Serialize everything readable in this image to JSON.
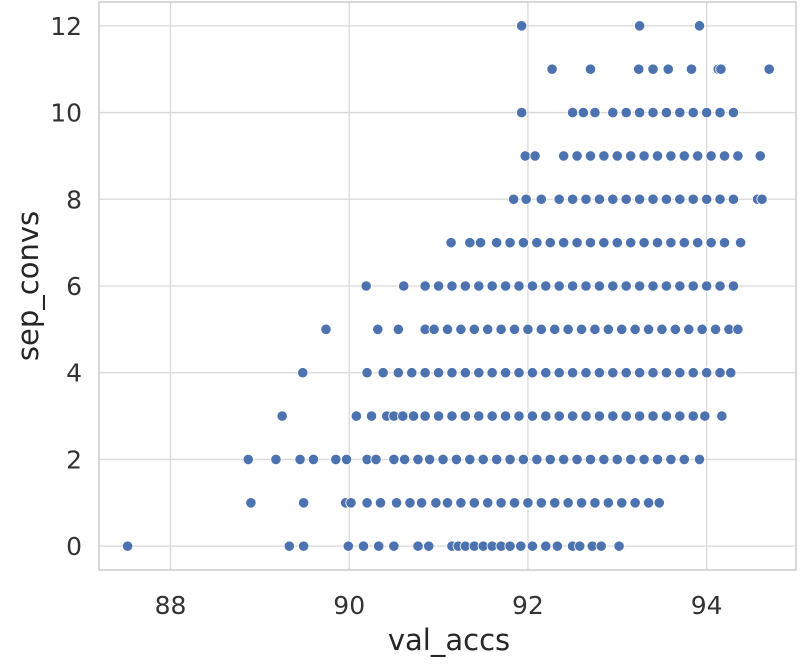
{
  "chart_data": {
    "type": "scatter",
    "title": "",
    "xlabel": "val_accs",
    "ylabel": "sep_convs",
    "xlim": [
      87.2,
      95.0
    ],
    "ylim": [
      -0.55,
      12.55
    ],
    "xticks": [
      88,
      90,
      92,
      94
    ],
    "yticks": [
      0,
      2,
      4,
      6,
      8,
      10,
      12
    ],
    "grid": true,
    "legend": "none",
    "point_color": "#4c72b0",
    "point_edge": "#ffffff",
    "series": [
      {
        "points": [
          [
            87.52,
            0
          ],
          [
            89.33,
            0
          ],
          [
            89.49,
            0
          ],
          [
            89.99,
            0
          ],
          [
            90.16,
            0
          ],
          [
            90.33,
            0
          ],
          [
            90.5,
            0
          ],
          [
            90.77,
            0
          ],
          [
            90.89,
            0
          ],
          [
            91.15,
            0
          ],
          [
            91.22,
            0
          ],
          [
            91.3,
            0
          ],
          [
            91.4,
            0
          ],
          [
            91.5,
            0
          ],
          [
            91.6,
            0
          ],
          [
            91.7,
            0
          ],
          [
            91.8,
            0
          ],
          [
            91.92,
            0
          ],
          [
            92.05,
            0
          ],
          [
            92.2,
            0
          ],
          [
            92.33,
            0
          ],
          [
            92.5,
            0
          ],
          [
            92.58,
            0
          ],
          [
            92.72,
            0
          ],
          [
            92.82,
            0
          ],
          [
            93.02,
            0
          ],
          [
            88.9,
            1
          ],
          [
            89.49,
            1
          ],
          [
            89.96,
            1
          ],
          [
            90.02,
            1
          ],
          [
            90.2,
            1
          ],
          [
            90.35,
            1
          ],
          [
            90.53,
            1
          ],
          [
            90.68,
            1
          ],
          [
            90.81,
            1
          ],
          [
            90.97,
            1
          ],
          [
            91.1,
            1
          ],
          [
            91.25,
            1
          ],
          [
            91.4,
            1
          ],
          [
            91.55,
            1
          ],
          [
            91.7,
            1
          ],
          [
            91.85,
            1
          ],
          [
            92.0,
            1
          ],
          [
            92.15,
            1
          ],
          [
            92.3,
            1
          ],
          [
            92.45,
            1
          ],
          [
            92.6,
            1
          ],
          [
            92.75,
            1
          ],
          [
            92.9,
            1
          ],
          [
            93.05,
            1
          ],
          [
            93.2,
            1
          ],
          [
            93.35,
            1
          ],
          [
            93.47,
            1
          ],
          [
            88.87,
            2
          ],
          [
            89.18,
            2
          ],
          [
            89.45,
            2
          ],
          [
            89.6,
            2
          ],
          [
            89.85,
            2
          ],
          [
            89.97,
            2
          ],
          [
            90.2,
            2
          ],
          [
            90.3,
            2
          ],
          [
            90.5,
            2
          ],
          [
            90.62,
            2
          ],
          [
            90.77,
            2
          ],
          [
            90.9,
            2
          ],
          [
            91.05,
            2
          ],
          [
            91.2,
            2
          ],
          [
            91.35,
            2
          ],
          [
            91.5,
            2
          ],
          [
            91.65,
            2
          ],
          [
            91.8,
            2
          ],
          [
            91.95,
            2
          ],
          [
            92.1,
            2
          ],
          [
            92.25,
            2
          ],
          [
            92.4,
            2
          ],
          [
            92.55,
            2
          ],
          [
            92.7,
            2
          ],
          [
            92.85,
            2
          ],
          [
            93.0,
            2
          ],
          [
            93.15,
            2
          ],
          [
            93.3,
            2
          ],
          [
            93.45,
            2
          ],
          [
            93.6,
            2
          ],
          [
            93.75,
            2
          ],
          [
            93.92,
            2
          ],
          [
            89.25,
            3
          ],
          [
            90.08,
            3
          ],
          [
            90.25,
            3
          ],
          [
            90.42,
            3
          ],
          [
            90.5,
            3
          ],
          [
            90.6,
            3
          ],
          [
            90.72,
            3
          ],
          [
            90.85,
            3
          ],
          [
            91.0,
            3
          ],
          [
            91.15,
            3
          ],
          [
            91.3,
            3
          ],
          [
            91.45,
            3
          ],
          [
            91.6,
            3
          ],
          [
            91.75,
            3
          ],
          [
            91.9,
            3
          ],
          [
            92.05,
            3
          ],
          [
            92.2,
            3
          ],
          [
            92.35,
            3
          ],
          [
            92.5,
            3
          ],
          [
            92.65,
            3
          ],
          [
            92.8,
            3
          ],
          [
            92.95,
            3
          ],
          [
            93.1,
            3
          ],
          [
            93.25,
            3
          ],
          [
            93.4,
            3
          ],
          [
            93.55,
            3
          ],
          [
            93.7,
            3
          ],
          [
            93.85,
            3
          ],
          [
            93.98,
            3
          ],
          [
            94.17,
            3
          ],
          [
            89.48,
            4
          ],
          [
            90.2,
            4
          ],
          [
            90.38,
            4
          ],
          [
            90.55,
            4
          ],
          [
            90.7,
            4
          ],
          [
            90.85,
            4
          ],
          [
            91.0,
            4
          ],
          [
            91.15,
            4
          ],
          [
            91.3,
            4
          ],
          [
            91.45,
            4
          ],
          [
            91.6,
            4
          ],
          [
            91.75,
            4
          ],
          [
            91.9,
            4
          ],
          [
            92.05,
            4
          ],
          [
            92.2,
            4
          ],
          [
            92.35,
            4
          ],
          [
            92.5,
            4
          ],
          [
            92.65,
            4
          ],
          [
            92.8,
            4
          ],
          [
            92.95,
            4
          ],
          [
            93.1,
            4
          ],
          [
            93.25,
            4
          ],
          [
            93.4,
            4
          ],
          [
            93.55,
            4
          ],
          [
            93.7,
            4
          ],
          [
            93.85,
            4
          ],
          [
            94.0,
            4
          ],
          [
            94.15,
            4
          ],
          [
            94.27,
            4
          ],
          [
            89.74,
            5
          ],
          [
            90.32,
            5
          ],
          [
            90.55,
            5
          ],
          [
            90.85,
            5
          ],
          [
            90.95,
            5
          ],
          [
            91.1,
            5
          ],
          [
            91.25,
            5
          ],
          [
            91.4,
            5
          ],
          [
            91.55,
            5
          ],
          [
            91.7,
            5
          ],
          [
            91.85,
            5
          ],
          [
            92.0,
            5
          ],
          [
            92.15,
            5
          ],
          [
            92.3,
            5
          ],
          [
            92.45,
            5
          ],
          [
            92.6,
            5
          ],
          [
            92.75,
            5
          ],
          [
            92.9,
            5
          ],
          [
            93.05,
            5
          ],
          [
            93.2,
            5
          ],
          [
            93.35,
            5
          ],
          [
            93.5,
            5
          ],
          [
            93.65,
            5
          ],
          [
            93.8,
            5
          ],
          [
            93.95,
            5
          ],
          [
            94.1,
            5
          ],
          [
            94.25,
            5
          ],
          [
            94.35,
            5
          ],
          [
            90.19,
            6
          ],
          [
            90.61,
            6
          ],
          [
            90.85,
            6
          ],
          [
            91.0,
            6
          ],
          [
            91.15,
            6
          ],
          [
            91.3,
            6
          ],
          [
            91.45,
            6
          ],
          [
            91.6,
            6
          ],
          [
            91.75,
            6
          ],
          [
            91.9,
            6
          ],
          [
            92.05,
            6
          ],
          [
            92.2,
            6
          ],
          [
            92.35,
            6
          ],
          [
            92.5,
            6
          ],
          [
            92.65,
            6
          ],
          [
            92.8,
            6
          ],
          [
            92.95,
            6
          ],
          [
            93.1,
            6
          ],
          [
            93.25,
            6
          ],
          [
            93.4,
            6
          ],
          [
            93.55,
            6
          ],
          [
            93.7,
            6
          ],
          [
            93.85,
            6
          ],
          [
            94.0,
            6
          ],
          [
            94.15,
            6
          ],
          [
            94.3,
            6
          ],
          [
            91.14,
            7
          ],
          [
            91.35,
            7
          ],
          [
            91.47,
            7
          ],
          [
            91.65,
            7
          ],
          [
            91.8,
            7
          ],
          [
            91.95,
            7
          ],
          [
            92.1,
            7
          ],
          [
            92.25,
            7
          ],
          [
            92.4,
            7
          ],
          [
            92.55,
            7
          ],
          [
            92.7,
            7
          ],
          [
            92.85,
            7
          ],
          [
            93.0,
            7
          ],
          [
            93.15,
            7
          ],
          [
            93.3,
            7
          ],
          [
            93.45,
            7
          ],
          [
            93.6,
            7
          ],
          [
            93.75,
            7
          ],
          [
            93.9,
            7
          ],
          [
            94.05,
            7
          ],
          [
            94.2,
            7
          ],
          [
            94.38,
            7
          ],
          [
            91.84,
            8
          ],
          [
            91.98,
            8
          ],
          [
            92.15,
            8
          ],
          [
            92.35,
            8
          ],
          [
            92.5,
            8
          ],
          [
            92.65,
            8
          ],
          [
            92.8,
            8
          ],
          [
            92.95,
            8
          ],
          [
            93.1,
            8
          ],
          [
            93.25,
            8
          ],
          [
            93.4,
            8
          ],
          [
            93.55,
            8
          ],
          [
            93.7,
            8
          ],
          [
            93.85,
            8
          ],
          [
            94.0,
            8
          ],
          [
            94.15,
            8
          ],
          [
            94.3,
            8
          ],
          [
            94.57,
            8
          ],
          [
            94.62,
            8
          ],
          [
            91.97,
            9
          ],
          [
            92.08,
            9
          ],
          [
            92.4,
            9
          ],
          [
            92.55,
            9
          ],
          [
            92.7,
            9
          ],
          [
            92.85,
            9
          ],
          [
            93.0,
            9
          ],
          [
            93.15,
            9
          ],
          [
            93.3,
            9
          ],
          [
            93.45,
            9
          ],
          [
            93.6,
            9
          ],
          [
            93.75,
            9
          ],
          [
            93.9,
            9
          ],
          [
            94.05,
            9
          ],
          [
            94.2,
            9
          ],
          [
            94.35,
            9
          ],
          [
            94.6,
            9
          ],
          [
            91.93,
            10
          ],
          [
            92.5,
            10
          ],
          [
            92.62,
            10
          ],
          [
            92.75,
            10
          ],
          [
            92.95,
            10
          ],
          [
            93.1,
            10
          ],
          [
            93.25,
            10
          ],
          [
            93.4,
            10
          ],
          [
            93.55,
            10
          ],
          [
            93.7,
            10
          ],
          [
            93.85,
            10
          ],
          [
            94.0,
            10
          ],
          [
            94.15,
            10
          ],
          [
            94.3,
            10
          ],
          [
            92.27,
            11
          ],
          [
            92.7,
            11
          ],
          [
            93.24,
            11
          ],
          [
            93.4,
            11
          ],
          [
            93.57,
            11
          ],
          [
            93.83,
            11
          ],
          [
            94.13,
            11
          ],
          [
            94.16,
            11
          ],
          [
            94.7,
            11
          ],
          [
            91.93,
            12
          ],
          [
            93.25,
            12
          ],
          [
            93.92,
            12
          ]
        ]
      }
    ]
  }
}
